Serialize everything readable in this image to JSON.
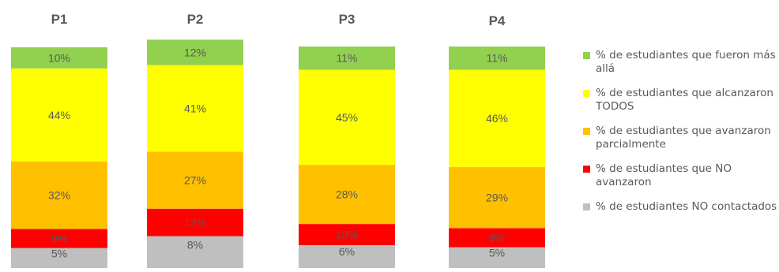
{
  "chart_data": {
    "type": "bar",
    "stacked": true,
    "categories": [
      "P1",
      "P2",
      "P3",
      "P4"
    ],
    "series": [
      {
        "name": "% de estudiantes NO contactados",
        "color": "#bfbfbf",
        "values": [
          5,
          8,
          6,
          5
        ],
        "labels": [
          "5%",
          "8%",
          "6%",
          "5%"
        ]
      },
      {
        "name": "% de estudiantes que NO avanzaron",
        "color": "#ff0000",
        "values": [
          9,
          13,
          10,
          9
        ],
        "labels": [
          "9%",
          "13%",
          "10%",
          "9%"
        ]
      },
      {
        "name": "% de estudiantes que avanzaron parcialmente",
        "color": "#ffc000",
        "values": [
          32,
          27,
          28,
          29
        ],
        "labels": [
          "32%",
          "27%",
          "28%",
          "29%"
        ]
      },
      {
        "name": "% de estudiantes que alcanzaron  TODOS",
        "color": "#ffff00",
        "values": [
          44,
          41,
          45,
          46
        ],
        "labels": [
          "44%",
          "41%",
          "45%",
          "46%"
        ]
      },
      {
        "name": "% de estudiantes que fueron más allá",
        "color": "#92d050",
        "values": [
          10,
          12,
          11,
          11
        ],
        "labels": [
          "10%",
          "12%",
          "11%",
          "11%"
        ]
      }
    ],
    "legend_position": "right",
    "grid": false
  },
  "legend": {
    "items": [
      {
        "label": "% de estudiantes que fueron más allá",
        "color": "#92d050"
      },
      {
        "label": "% de estudiantes que alcanzaron  TODOS",
        "color": "#ffff00"
      },
      {
        "label": "% de estudiantes que avanzaron parcialmente",
        "color": "#ffc000"
      },
      {
        "label": "% de estudiantes que NO avanzaron",
        "color": "#ff0000"
      },
      {
        "label": "% de estudiantes NO contactados",
        "color": "#bfbfbf"
      }
    ]
  }
}
